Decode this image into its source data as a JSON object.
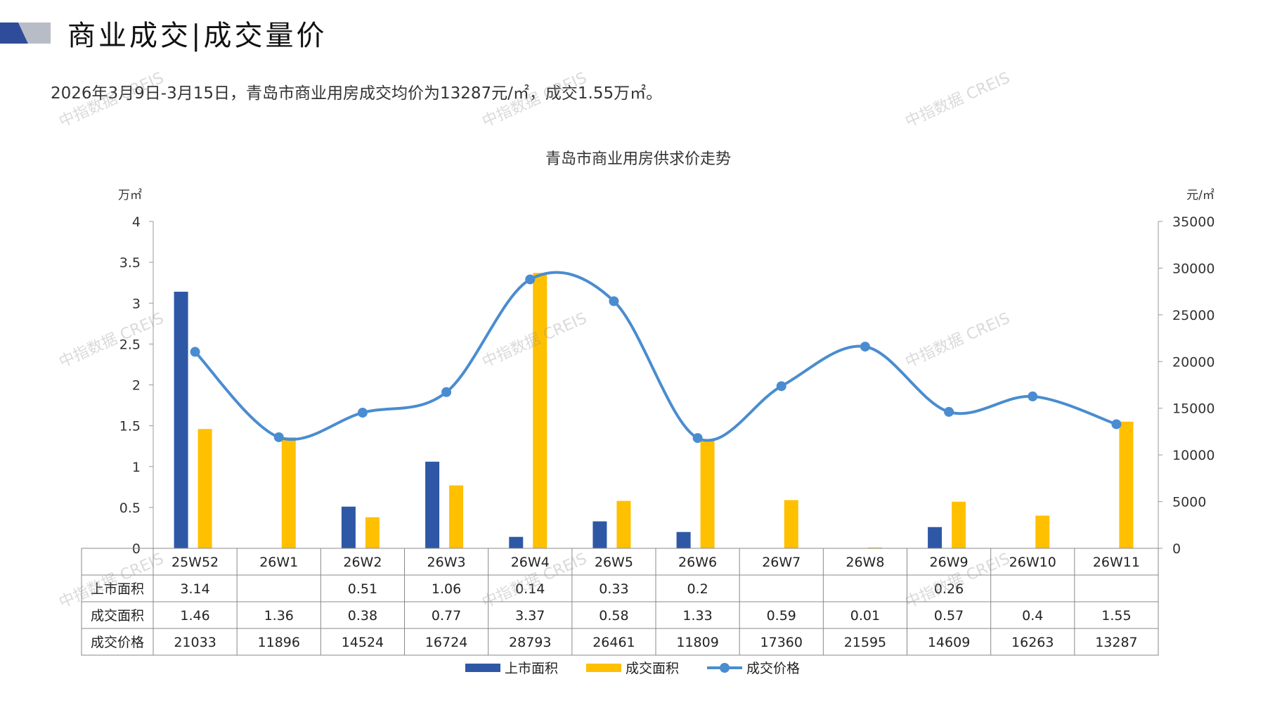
{
  "header": {
    "title": "商业成交|成交量价",
    "summary": "2026年3月9日-3月15日，青岛市商业用房成交均价为13287元/㎡，成交1.55万㎡。"
  },
  "watermark": "中指数据 CREIS",
  "colors": {
    "listed": "#2E58A6",
    "sold": "#FFC000",
    "price": "#4A8CD0",
    "logo_dark": "#2E4C9A",
    "logo_light": "#B8BCC6"
  },
  "chart_data": {
    "type": "bar",
    "title": "青岛市商业用房供求价走势",
    "categories": [
      "25W52",
      "26W1",
      "26W2",
      "26W3",
      "26W4",
      "26W5",
      "26W6",
      "26W7",
      "26W8",
      "26W9",
      "26W10",
      "26W11"
    ],
    "left_axis": {
      "unit": "万㎡",
      "ticks": [
        "0",
        "0.5",
        "1",
        "1.5",
        "2",
        "2.5",
        "3",
        "3.5",
        "4"
      ],
      "ylim": [
        0,
        4
      ]
    },
    "right_axis": {
      "unit": "元/㎡",
      "ticks": [
        "0",
        "5000",
        "10000",
        "15000",
        "20000",
        "25000",
        "30000",
        "35000"
      ],
      "ylim": [
        0,
        35000
      ]
    },
    "series": [
      {
        "name": "上市面积",
        "kind": "bar",
        "axis": "left",
        "values": [
          3.14,
          null,
          0.51,
          1.06,
          0.14,
          0.33,
          0.2,
          null,
          null,
          0.26,
          null,
          null
        ],
        "labels": [
          "3.14",
          "",
          "0.51",
          "1.06",
          "0.14",
          "0.33",
          "0.2",
          "",
          "",
          "0.26",
          "",
          ""
        ]
      },
      {
        "name": "成交面积",
        "kind": "bar",
        "axis": "left",
        "values": [
          1.46,
          1.36,
          0.38,
          0.77,
          3.37,
          0.58,
          1.33,
          0.59,
          0.01,
          0.57,
          0.4,
          1.55
        ],
        "labels": [
          "1.46",
          "1.36",
          "0.38",
          "0.77",
          "3.37",
          "0.58",
          "1.33",
          "0.59",
          "0.01",
          "0.57",
          "0.4",
          "1.55"
        ]
      },
      {
        "name": "成交价格",
        "kind": "line",
        "axis": "right",
        "values": [
          21033,
          11896,
          14524,
          16724,
          28793,
          26461,
          11809,
          17360,
          21595,
          14609,
          16263,
          13287
        ],
        "labels": [
          "21033",
          "11896",
          "14524",
          "16724",
          "28793",
          "26461",
          "11809",
          "17360",
          "21595",
          "14609",
          "16263",
          "13287"
        ]
      }
    ],
    "legend_position": "bottom",
    "grid": false
  }
}
